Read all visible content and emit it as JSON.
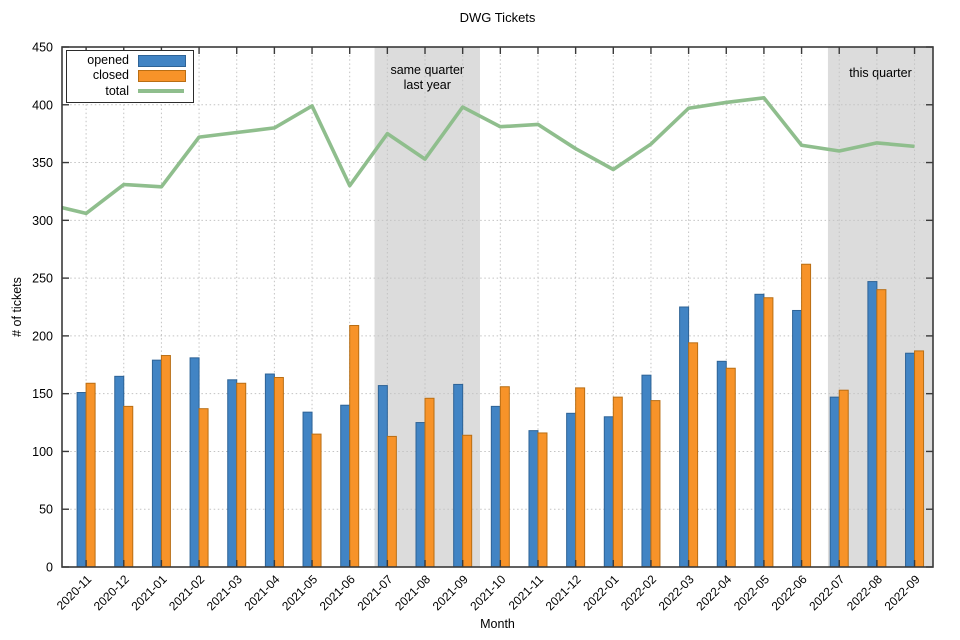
{
  "chart_data": {
    "type": "bar",
    "title": "DWG Tickets",
    "xlabel": "Month",
    "ylabel": "# of tickets",
    "ylim": [
      0,
      450
    ],
    "ytick_step": 50,
    "x_range": [
      -0.64,
      22.49
    ],
    "grid": true,
    "legend_position": "top-left",
    "categories": [
      "2020-11",
      "2020-12",
      "2021-01",
      "2021-02",
      "2021-03",
      "2021-04",
      "2021-05",
      "2021-06",
      "2021-07",
      "2021-08",
      "2021-09",
      "2021-10",
      "2021-11",
      "2021-12",
      "2022-01",
      "2022-02",
      "2022-03",
      "2022-04",
      "2022-05",
      "2022-06",
      "2022-07",
      "2022-08",
      "2022-09"
    ],
    "series": [
      {
        "name": "opened",
        "type": "bar",
        "color": "#4184c4",
        "border_color": "#2e6396",
        "values": [
          151,
          165,
          179,
          181,
          162,
          167,
          134,
          140,
          157,
          125,
          158,
          139,
          118,
          133,
          130,
          166,
          225,
          178,
          236,
          222,
          147,
          247,
          185
        ]
      },
      {
        "name": "closed",
        "type": "bar",
        "color": "#f79329",
        "border_color": "#b96e14",
        "values": [
          159,
          139,
          183,
          137,
          159,
          164,
          115,
          209,
          113,
          146,
          114,
          156,
          116,
          155,
          147,
          144,
          194,
          172,
          233,
          262,
          153,
          240,
          187
        ]
      },
      {
        "name": "total",
        "type": "line",
        "color": "#8fbe8d",
        "start_edge_value": 311,
        "values": [
          306,
          331,
          329,
          372,
          376,
          380,
          399,
          330,
          375,
          353,
          398,
          381,
          383,
          362,
          344,
          366,
          397,
          402,
          406,
          365,
          360,
          367,
          364
        ]
      }
    ],
    "annotations": [
      {
        "label_lines": [
          "same quarter",
          "last year"
        ],
        "from": 7.66,
        "to": 10.46,
        "color": "#dcdcdc"
      },
      {
        "label_lines": [
          "this quarter"
        ],
        "from": 19.7,
        "to": 22.49,
        "color": "#dcdcdc"
      }
    ],
    "legend_entries": [
      "opened",
      "closed",
      "total"
    ],
    "axis_color": "#3a3a3a",
    "grid_color": "#c3c3c3",
    "text_color": "#000000"
  }
}
